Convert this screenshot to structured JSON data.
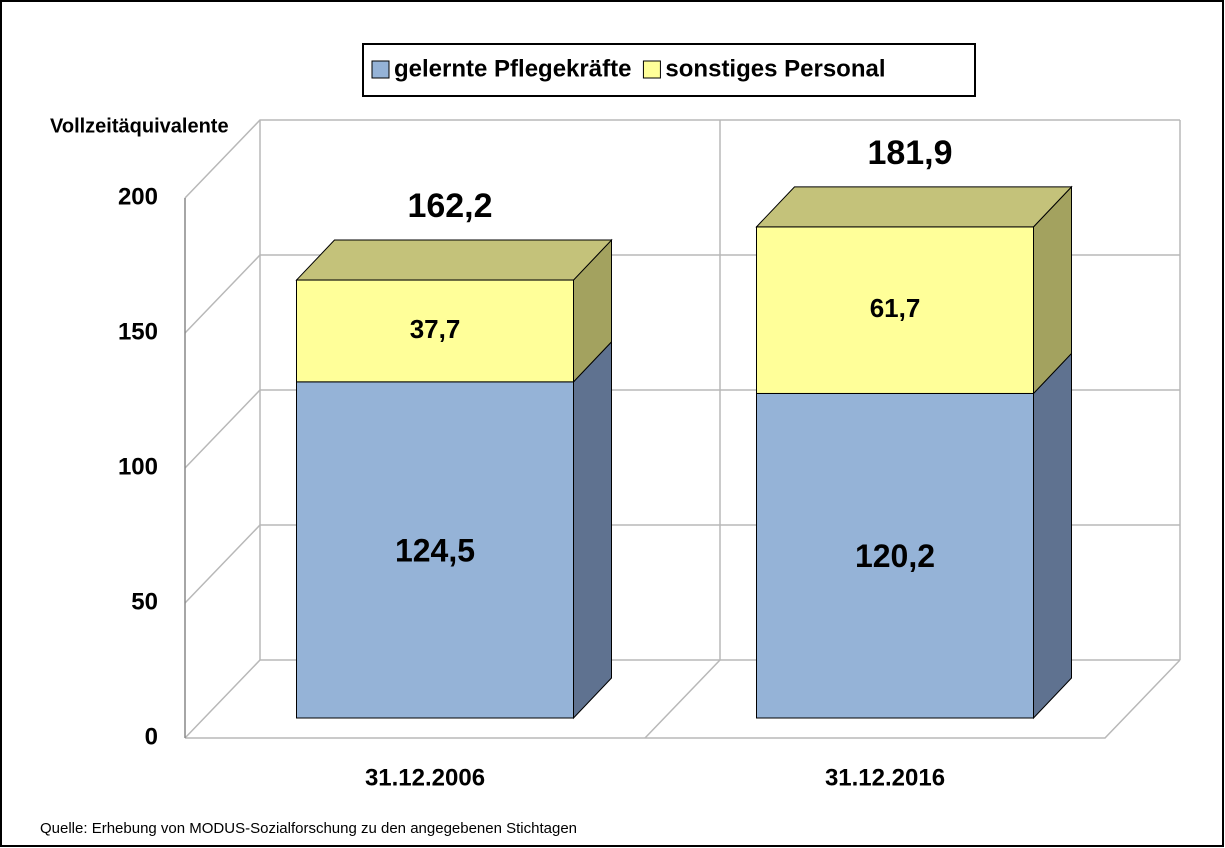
{
  "chart_data": {
    "type": "bar3d_stacked",
    "y_axis_label": "Vollzeitäquivalente",
    "categories": [
      "31.12.2006",
      "31.12.2016"
    ],
    "series": [
      {
        "name": "gelernte Pflegekräfte",
        "color": "#95b3d7",
        "side_color": "#5f7290",
        "values": [
          124.5,
          120.2
        ],
        "value_labels": [
          "124,5",
          "120,2"
        ]
      },
      {
        "name": "sonstiges Personal",
        "color": "#ffff99",
        "side_color": "#a3a25f",
        "top_color": "#c4c27a",
        "values": [
          37.7,
          61.7
        ],
        "value_labels": [
          "37,7",
          "61,7"
        ]
      }
    ],
    "totals": {
      "values": [
        162.2,
        181.9
      ],
      "value_labels": [
        "162,2",
        "181,9"
      ]
    },
    "ylim": [
      0,
      200
    ],
    "yticks": [
      0,
      50,
      100,
      150,
      200
    ],
    "grid": true,
    "legend": "top",
    "source": "Quelle: Erhebung von MODUS-Sozialforschung zu den angegebenen Stichtagen"
  }
}
